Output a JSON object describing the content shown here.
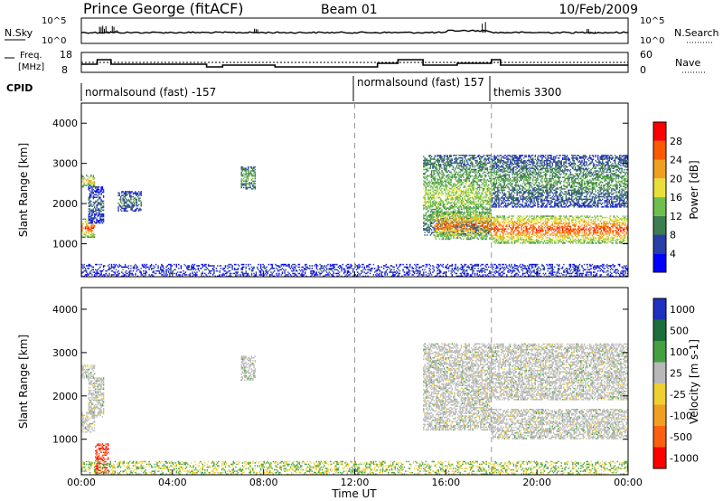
{
  "header": {
    "station": "Prince George (fitACF)",
    "beam": "Beam 01",
    "date": "10/Feb/2009"
  },
  "side_labels": {
    "nsky": "N.Sky",
    "nsearch": "N.Search",
    "freq_line1": "Freq.",
    "freq_line2": "[MHz]",
    "nave": "Nave",
    "cpid": "CPID"
  },
  "noise_axis": {
    "left_ticks": [
      "10^5",
      "10^0"
    ],
    "right_ticks": [
      "10^5",
      "10^0"
    ]
  },
  "freq_axis": {
    "left_ticks": [
      "18",
      "8"
    ],
    "right_ticks": [
      "60",
      "0"
    ]
  },
  "cpid_segments": [
    {
      "label": "normalsound (fast) -157",
      "start_hour": 0.0
    },
    {
      "label": "normalsound (fast) 157",
      "start_hour": 12.0
    },
    {
      "label": "themis 3300",
      "start_hour": 18.0
    }
  ],
  "time_axis": {
    "label": "Time UT",
    "ticks": [
      "00:00",
      "04:00",
      "08:00",
      "12:00",
      "16:00",
      "20:00",
      "00:00"
    ]
  },
  "power_panel": {
    "ylabel": "Slant Range [km]",
    "yticks": [
      "1000",
      "2000",
      "3000",
      "4000"
    ],
    "colorbar_label": "Power [dB]",
    "colorbar_ticks": [
      "4",
      "8",
      "12",
      "16",
      "20",
      "24",
      "28"
    ],
    "colors": [
      "#0000ff",
      "#2a3ea8",
      "#3e7d4f",
      "#6fbf4f",
      "#e8e03a",
      "#f0a020",
      "#ff5a00",
      "#ff0000"
    ]
  },
  "velocity_panel": {
    "ylabel": "Slant Range [km]",
    "yticks": [
      "1000",
      "2000",
      "3000",
      "4000"
    ],
    "colorbar_label": "Velocity [m s-1]",
    "colorbar_ticks": [
      "1000",
      "500",
      "100",
      "25",
      "-25",
      "-100",
      "-500",
      "-1000"
    ],
    "colors": [
      "#2030c0",
      "#1d6e3a",
      "#46a040",
      "#b8b8b8",
      "#f0d030",
      "#f0a020",
      "#ff6010",
      "#ff0000"
    ]
  },
  "chart_data": [
    {
      "type": "heatmap",
      "title": "Prince George (fitACF) Beam 01 10/Feb/2009",
      "xlabel": "Time UT",
      "ylabel": "Slant Range [km]",
      "x_range_hours": [
        0,
        24
      ],
      "ylim": [
        180,
        4500
      ],
      "colorbar": "Power [dB]",
      "clim": [
        0,
        30
      ],
      "regions": [
        {
          "t": [
            0.0,
            0.6
          ],
          "r": [
            1150,
            1600
          ],
          "value": 28
        },
        {
          "t": [
            0.0,
            0.6
          ],
          "r": [
            2400,
            2700
          ],
          "value": 22
        },
        {
          "t": [
            0.3,
            1.0
          ],
          "r": [
            1500,
            2400
          ],
          "value": 8
        },
        {
          "t": [
            1.6,
            2.6
          ],
          "r": [
            1800,
            2300
          ],
          "value": 10
        },
        {
          "t": [
            7.0,
            7.6
          ],
          "r": [
            2350,
            2900
          ],
          "value": 14
        },
        {
          "t": [
            15.0,
            18.0
          ],
          "r": [
            1200,
            3200
          ],
          "value": 16
        },
        {
          "t": [
            15.5,
            18.0
          ],
          "r": [
            1100,
            1800
          ],
          "value": 26
        },
        {
          "t": [
            18.0,
            24.0
          ],
          "r": [
            1000,
            1700
          ],
          "value": 28
        },
        {
          "t": [
            18.0,
            24.0
          ],
          "r": [
            1900,
            3200
          ],
          "value": 12
        },
        {
          "t": [
            0.0,
            24.0
          ],
          "r": [
            180,
            500
          ],
          "value": 6
        }
      ]
    },
    {
      "type": "heatmap",
      "title": "",
      "xlabel": "Time UT",
      "ylabel": "Slant Range [km]",
      "x_range_hours": [
        0,
        24
      ],
      "ylim": [
        180,
        4500
      ],
      "colorbar": "Velocity [m s-1]",
      "clim": [
        -1000,
        1000
      ],
      "regions": [
        {
          "t": [
            0.0,
            0.6
          ],
          "r": [
            1150,
            1600
          ],
          "value": 0
        },
        {
          "t": [
            0.0,
            0.6
          ],
          "r": [
            2400,
            2700
          ],
          "value": 0
        },
        {
          "t": [
            0.3,
            1.0
          ],
          "r": [
            1500,
            2400
          ],
          "value": 0
        },
        {
          "t": [
            7.0,
            7.6
          ],
          "r": [
            2350,
            2900
          ],
          "value": 0
        },
        {
          "t": [
            15.0,
            18.0
          ],
          "r": [
            1200,
            3200
          ],
          "value": 0
        },
        {
          "t": [
            18.0,
            24.0
          ],
          "r": [
            1000,
            1700
          ],
          "value": 0
        },
        {
          "t": [
            18.0,
            24.0
          ],
          "r": [
            1900,
            3200
          ],
          "value": 0
        },
        {
          "t": [
            0.6,
            1.2
          ],
          "r": [
            200,
            900
          ],
          "value": -700
        },
        {
          "t": [
            0.0,
            24.0
          ],
          "r": [
            180,
            500
          ],
          "value": 150
        }
      ]
    }
  ]
}
